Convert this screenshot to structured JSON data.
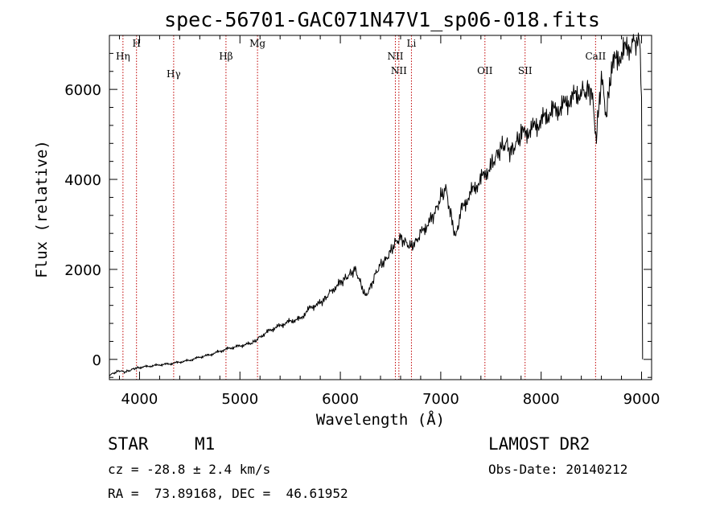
{
  "chart_data": {
    "type": "line",
    "title": "spec-56701-GAC071N47V1_sp06-018.fits",
    "xlabel": "Wavelength (Å)",
    "ylabel": "Flux (relative)",
    "xlim": [
      3700,
      9100
    ],
    "ylim": [
      -450,
      7200
    ],
    "x_ticks": [
      4000,
      5000,
      6000,
      7000,
      8000,
      9000
    ],
    "y_ticks": [
      0,
      2000,
      4000,
      6000
    ],
    "grid": false,
    "series": [
      {
        "x": [
          3700,
          3750,
          3800,
          3850,
          3900,
          3950,
          4000,
          4100,
          4200,
          4300,
          4400,
          4500,
          4600,
          4700,
          4800,
          4900,
          5000,
          5100,
          5150,
          5200,
          5300,
          5400,
          5500,
          5600,
          5700,
          5800,
          5850,
          5900,
          6000,
          6050,
          6100,
          6150,
          6200,
          6250,
          6300,
          6350,
          6400,
          6450,
          6500,
          6550,
          6600,
          6650,
          6700,
          6750,
          6800,
          6900,
          6950,
          7000,
          7050,
          7100,
          7150,
          7200,
          7300,
          7400,
          7500,
          7550,
          7600,
          7650,
          7700,
          7750,
          7800,
          7900,
          8000,
          8100,
          8200,
          8300,
          8400,
          8450,
          8500,
          8550,
          8600,
          8650,
          8700,
          8800,
          8900,
          8950,
          8980,
          9000,
          9010
        ],
        "y": [
          -350,
          -300,
          -250,
          -280,
          -250,
          -200,
          -180,
          -150,
          -120,
          -100,
          -60,
          -20,
          50,
          100,
          180,
          250,
          300,
          350,
          400,
          500,
          650,
          750,
          850,
          900,
          1150,
          1250,
          1350,
          1500,
          1700,
          1800,
          1900,
          2000,
          1700,
          1400,
          1600,
          1900,
          2100,
          2200,
          2400,
          2600,
          2700,
          2600,
          2500,
          2600,
          2800,
          3100,
          3300,
          3600,
          3800,
          3200,
          2700,
          3300,
          3700,
          4000,
          4300,
          4500,
          4700,
          4800,
          4600,
          4800,
          5000,
          5100,
          5300,
          5500,
          5600,
          5800,
          5950,
          5950,
          6000,
          4900,
          6300,
          5400,
          6500,
          6800,
          7000,
          7100,
          7000,
          6000,
          0
        ]
      }
    ],
    "lines": [
      {
        "name": "Hη",
        "x": 3835
      },
      {
        "name": "H",
        "x": 3970
      },
      {
        "name": "Hγ",
        "x": 4340
      },
      {
        "name": "Hβ",
        "x": 4861
      },
      {
        "name": "Mg",
        "x": 5175
      },
      {
        "name": "NII",
        "x": 6548
      },
      {
        "name": "NII",
        "x": 6583
      },
      {
        "name": "Li",
        "x": 6708
      },
      {
        "name": "OII",
        "x": 7440
      },
      {
        "name": "SII",
        "x": 7840
      },
      {
        "name": "CaII",
        "x": 8542
      }
    ]
  },
  "info": {
    "object_class": "STAR",
    "subclass": "M1",
    "survey": "LAMOST DR2",
    "cz": "cz = -28.8 ± 2.4 km/s",
    "obs_date": "Obs-Date: 20140212",
    "coords": "RA =  73.89168, DEC =  46.61952"
  }
}
